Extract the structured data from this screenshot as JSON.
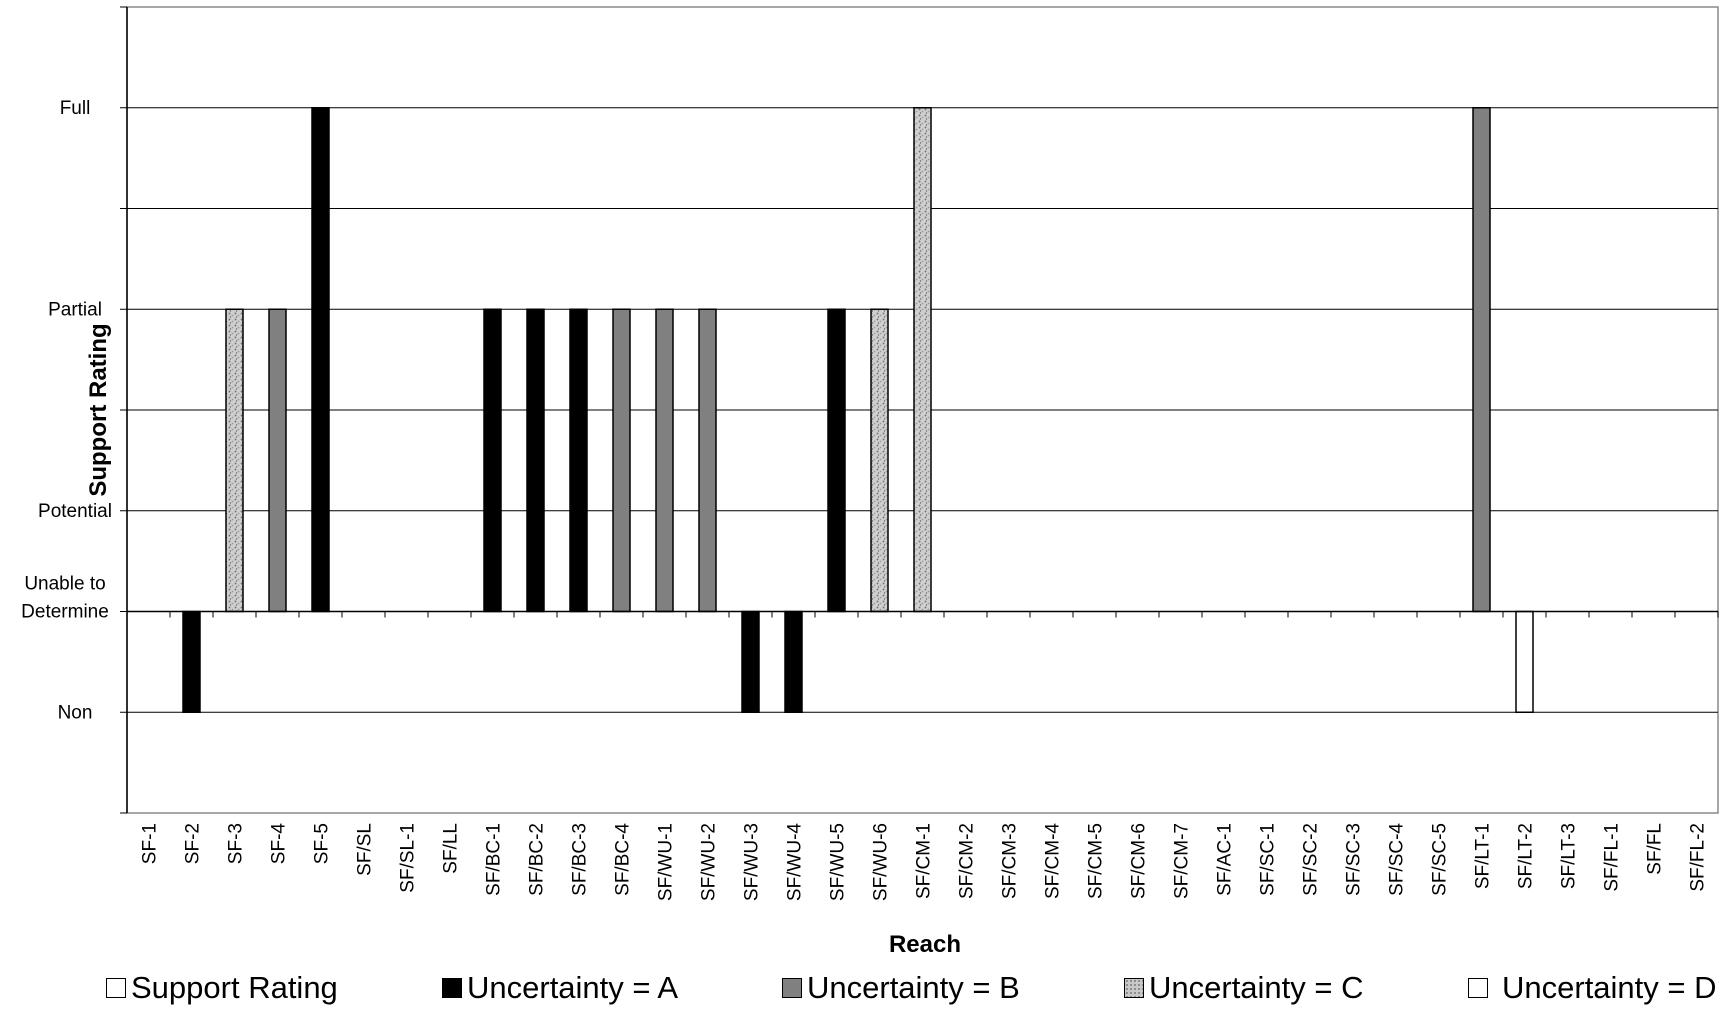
{
  "chart_data": {
    "type": "bar",
    "xlabel": "Reach",
    "ylabel": "Support Rating",
    "y_levels": [
      "Non",
      "Unable to\nDetermine",
      "Potential",
      "Partial",
      "Full"
    ],
    "baseline_level": "Unable to\nDetermine",
    "ylim": [
      -2,
      6
    ],
    "y_ticks": [
      {
        "value": 6,
        "label": ""
      },
      {
        "value": 5,
        "label": "Full"
      },
      {
        "value": 4,
        "label": ""
      },
      {
        "value": 3,
        "label": "Partial"
      },
      {
        "value": 2,
        "label": ""
      },
      {
        "value": 1,
        "label": "Potential"
      },
      {
        "value": 0,
        "label": "Unable to\nDetermine"
      },
      {
        "value": -1,
        "label": "Non"
      },
      {
        "value": -2,
        "label": ""
      }
    ],
    "grid": true,
    "legend_position": "bottom",
    "categories": [
      "SF-1",
      "SF-2",
      "SF-3",
      "SF-4",
      "SF-5",
      "SF/SL",
      "SF/SL-1",
      "SF/LL",
      "SF/BC-1",
      "SF/BC-2",
      "SF/BC-3",
      "SF/BC-4",
      "SF/WU-1",
      "SF/WU-2",
      "SF/WU-3",
      "SF/WU-4",
      "SF/WU-5",
      "SF/WU-6",
      "SF/CM-1",
      "SF/CM-2",
      "SF/CM-3",
      "SF/CM-4",
      "SF/CM-5",
      "SF/CM-6",
      "SF/CM-7",
      "SF/AC-1",
      "SF/SC-1",
      "SF/SC-2",
      "SF/SC-3",
      "SF/SC-4",
      "SF/SC-5",
      "SF/LT-1",
      "SF/LT-2",
      "SF/LT-3",
      "SF/FL-1",
      "SF/FL",
      "SF/FL-2"
    ],
    "series": [
      {
        "name": "Support Rating",
        "key": "support",
        "color": "#ffffff",
        "values": [
          null,
          null,
          null,
          null,
          null,
          null,
          null,
          null,
          null,
          null,
          null,
          null,
          null,
          null,
          null,
          null,
          null,
          null,
          null,
          null,
          null,
          null,
          null,
          null,
          null,
          null,
          null,
          null,
          null,
          null,
          null,
          null,
          null,
          null,
          null,
          null,
          null
        ]
      },
      {
        "name": "Uncertainty = A",
        "key": "A",
        "color": "#000000",
        "values": [
          null,
          -1,
          null,
          null,
          5,
          null,
          null,
          null,
          3,
          3,
          3,
          null,
          null,
          null,
          -1,
          -1,
          3,
          null,
          null,
          null,
          null,
          null,
          null,
          null,
          null,
          null,
          null,
          null,
          null,
          null,
          null,
          null,
          null,
          null,
          null,
          null,
          null
        ]
      },
      {
        "name": "Uncertainty = B",
        "key": "B",
        "color": "#808080",
        "values": [
          null,
          null,
          null,
          3,
          null,
          null,
          null,
          null,
          null,
          null,
          null,
          3,
          3,
          3,
          null,
          null,
          null,
          null,
          null,
          null,
          null,
          null,
          null,
          null,
          null,
          null,
          null,
          null,
          null,
          null,
          null,
          5,
          null,
          null,
          null,
          null,
          null
        ]
      },
      {
        "name": "Uncertainty = C",
        "key": "C",
        "color": "#c8c8c8",
        "values": [
          null,
          null,
          3,
          null,
          null,
          null,
          null,
          null,
          null,
          null,
          null,
          null,
          null,
          null,
          null,
          null,
          null,
          3,
          5,
          null,
          null,
          null,
          null,
          null,
          null,
          null,
          null,
          null,
          null,
          null,
          null,
          null,
          null,
          null,
          null,
          null,
          null
        ]
      },
      {
        "name": "Uncertainty = D",
        "key": "D",
        "color": "#ffffff",
        "values": [
          null,
          null,
          null,
          null,
          null,
          null,
          null,
          null,
          null,
          null,
          null,
          null,
          null,
          null,
          null,
          null,
          null,
          null,
          null,
          null,
          null,
          null,
          null,
          null,
          null,
          null,
          null,
          null,
          null,
          null,
          null,
          null,
          -1,
          null,
          null,
          null,
          null
        ]
      }
    ]
  }
}
